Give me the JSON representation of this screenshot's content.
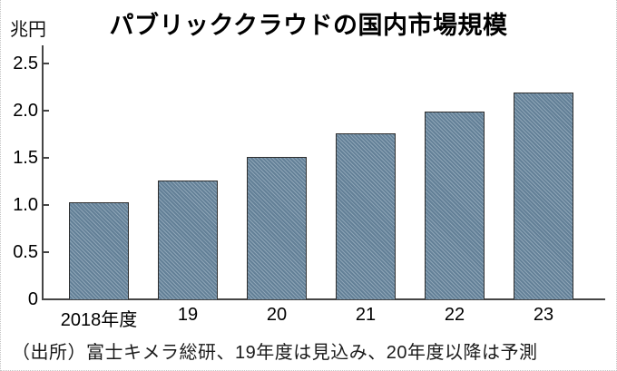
{
  "header": {
    "title": "パブリッククラウドの国内市場規模",
    "unit_label": "兆円"
  },
  "footer": {
    "source_note": "（出所）富士キメラ総研、19年度は見込み、20年度以降は予測"
  },
  "chart_data": {
    "type": "bar",
    "title": "パブリッククラウドの国内市場規模",
    "unit": "兆円",
    "categories": [
      "2018年度",
      "19",
      "20",
      "21",
      "22",
      "23"
    ],
    "values": [
      1.03,
      1.26,
      1.51,
      1.76,
      1.99,
      2.19
    ],
    "xlabel": "",
    "ylabel": "兆円",
    "ylim": [
      0,
      2.5
    ],
    "ytick_labels": [
      "0",
      "0.5",
      "1.0",
      "1.5",
      "2.0",
      "2.5"
    ],
    "grid": false,
    "legend": null,
    "bar_color": "#68879f",
    "bar_border_color": "#2f2f2f",
    "bar_hatch": "diagonal",
    "axis_color": "#454545"
  }
}
